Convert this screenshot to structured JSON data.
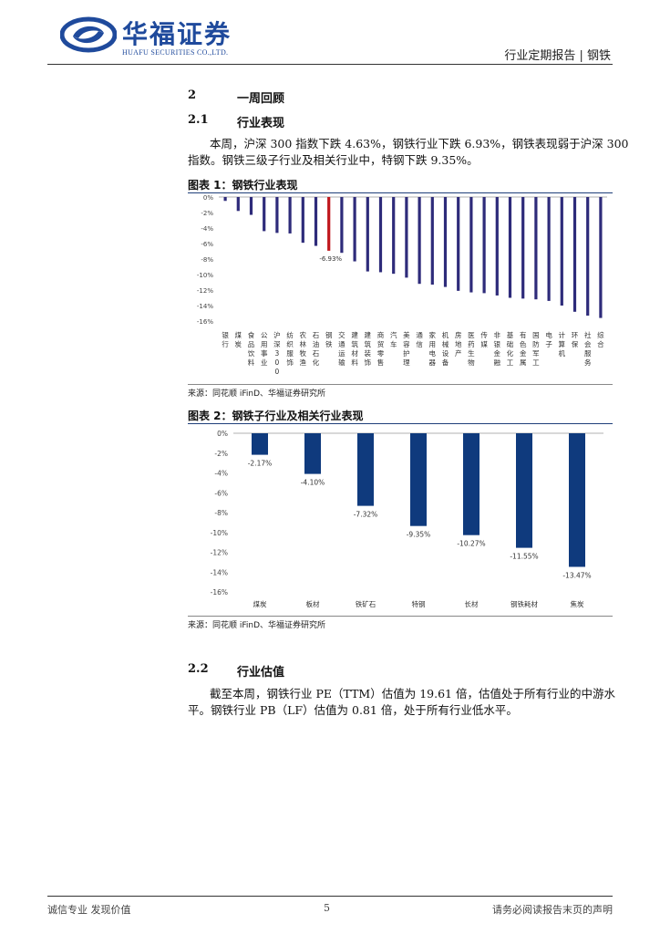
{
  "header": {
    "logo_cn": "华福证券",
    "logo_en": "HUAFU SECURITIES CO.,LTD.",
    "right_text": "行业定期报告 | 钢铁"
  },
  "section2": {
    "num": "2",
    "title": "一周回顾"
  },
  "section21": {
    "num": "2.1",
    "title": "行业表现",
    "para1": "本周，沪深 300 指数下跌 4.63%，钢铁行业下跌 6.93%，钢铁表现弱于沪深 300",
    "para2": "指数。钢铁三级子行业及相关行业中，特钢下跌 9.35%。"
  },
  "figure1": {
    "title": "图表 1：钢铁行业表现",
    "source": "来源：同花顺 iFinD、华福证券研究所",
    "chart_data": {
      "type": "bar",
      "yticks": [
        "0%",
        "-2%",
        "-4%",
        "-6%",
        "-8%",
        "-10%",
        "-12%",
        "-14%",
        "-16%"
      ],
      "ylim": [
        -16,
        0
      ],
      "categories": [
        "银行",
        "煤炭",
        "食品饮料",
        "公用事业",
        "沪深300",
        "纺织服饰",
        "农林牧渔",
        "石油石化",
        "钢铁",
        "交通运输",
        "建筑材料",
        "建筑装饰",
        "商贸零售",
        "汽车",
        "美容护理",
        "通信",
        "家用电器",
        "机械设备",
        "房地产",
        "医药生物",
        "传媒",
        "非银金融",
        "基础化工",
        "有色金属",
        "国防军工",
        "电子",
        "计算机",
        "环保",
        "社会服务",
        "综合"
      ],
      "values": [
        -0.5,
        -1.8,
        -2.3,
        -4.4,
        -4.63,
        -4.7,
        -5.9,
        -6.3,
        -6.93,
        -7.2,
        -8.3,
        -9.6,
        -9.7,
        -9.9,
        -10.4,
        -11.2,
        -11.3,
        -11.6,
        -12.1,
        -12.3,
        -12.4,
        -12.7,
        -13.0,
        -13.1,
        -13.2,
        -13.4,
        -14.0,
        -14.8,
        -15.3,
        -15.6
      ],
      "highlight_label": "-6.93%",
      "colors": {
        "bar": "#2e2b7a",
        "highlight": "#c0171d"
      }
    }
  },
  "figure2": {
    "title": "图表 2：钢铁子行业及相关行业表现",
    "source": "来源：同花顺 iFinD、华福证券研究所",
    "chart_data": {
      "type": "bar",
      "yticks": [
        "0%",
        "-2%",
        "-4%",
        "-6%",
        "-8%",
        "-10%",
        "-12%",
        "-14%",
        "-16%"
      ],
      "ylim": [
        -16,
        0
      ],
      "categories": [
        "煤炭",
        "板材",
        "铁矿石",
        "特钢",
        "长材",
        "钢铁耗材",
        "焦炭"
      ],
      "values": [
        -2.17,
        -4.1,
        -7.32,
        -9.35,
        -10.27,
        -11.55,
        -13.47
      ],
      "labels": [
        "-2.17%",
        "-4.10%",
        "-7.32%",
        "-9.35%",
        "-10.27%",
        "-11.55%",
        "-13.47%"
      ],
      "colors": {
        "bar": "#0f3a7d"
      }
    }
  },
  "section22": {
    "num": "2.2",
    "title": "行业估值",
    "para1": "截至本周，钢铁行业 PE（TTM）估值为 19.61 倍，估值处于所有行业的中游水",
    "para2": "平。钢铁行业 PB（LF）估值为 0.81 倍，处于所有行业低水平。"
  },
  "footer": {
    "left": "诚信专业  发现价值",
    "page": "5",
    "right": "请务必阅读报告末页的声明"
  }
}
